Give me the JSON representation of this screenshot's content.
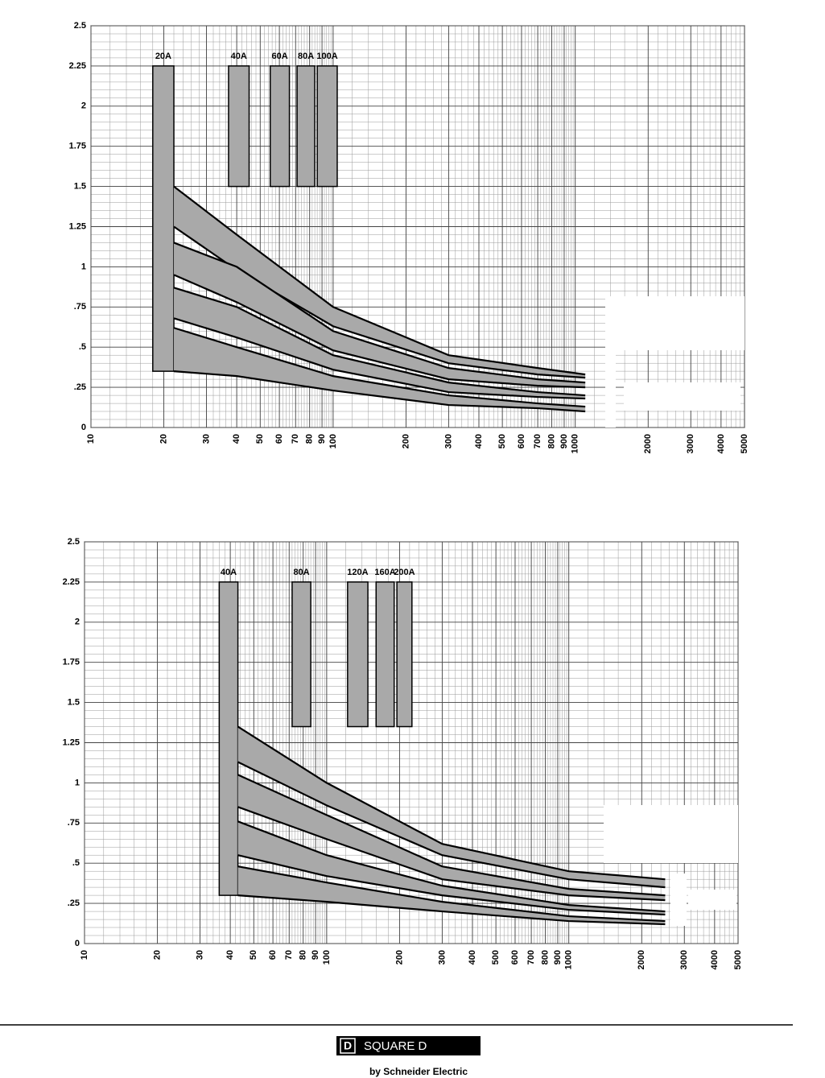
{
  "chart_data": [
    {
      "type": "band",
      "log_x": true,
      "grid": true,
      "fill_color": "#a9a9a9",
      "xlim": [
        10,
        5000
      ],
      "xticks": [
        10,
        20,
        30,
        40,
        50,
        60,
        70,
        80,
        90,
        100,
        200,
        300,
        400,
        500,
        600,
        700,
        800,
        900,
        1000,
        2000,
        3000,
        4000,
        5000
      ],
      "ylim": [
        0,
        2.5
      ],
      "yticks": [
        0,
        {
          "value": 0.25,
          "label": ".25"
        },
        {
          "value": 0.5,
          "label": ".5"
        },
        {
          "value": 0.75,
          "label": ".75"
        },
        1,
        1.25,
        1.5,
        1.75,
        2,
        2.25,
        2.5
      ],
      "x": [
        22,
        40,
        100,
        300,
        700,
        1100
      ],
      "bands": [
        {
          "upper": [
            1.5,
            1.2,
            0.75,
            0.45,
            0.37,
            0.33
          ],
          "lower": [
            1.25,
            0.98,
            0.63,
            0.4,
            0.33,
            0.31
          ]
        },
        {
          "upper": [
            1.15,
            1.0,
            0.6,
            0.37,
            0.3,
            0.28
          ],
          "lower": [
            0.95,
            0.78,
            0.48,
            0.3,
            0.26,
            0.25
          ]
        },
        {
          "upper": [
            0.87,
            0.75,
            0.45,
            0.28,
            0.22,
            0.2
          ],
          "lower": [
            0.68,
            0.56,
            0.36,
            0.22,
            0.19,
            0.18
          ]
        },
        {
          "upper": [
            0.62,
            0.5,
            0.32,
            0.2,
            0.15,
            0.13
          ],
          "lower": [
            0.35,
            0.32,
            0.23,
            0.14,
            0.12,
            0.1
          ]
        }
      ],
      "strips": [
        {
          "label": "20A",
          "x": [
            18,
            22
          ],
          "y": [
            0.35,
            2.25
          ]
        },
        {
          "label": "40A",
          "x": [
            37,
            45
          ],
          "y": [
            1.5,
            2.25
          ]
        },
        {
          "label": "60A",
          "x": [
            55,
            66
          ],
          "y": [
            1.5,
            2.25
          ]
        },
        {
          "label": "80A",
          "x": [
            71,
            84
          ],
          "y": [
            1.5,
            2.25
          ]
        },
        {
          "label": "100A",
          "x": [
            86,
            104
          ],
          "y": [
            1.5,
            2.25
          ]
        }
      ]
    },
    {
      "type": "band",
      "log_x": true,
      "grid": true,
      "fill_color": "#a9a9a9",
      "xlim": [
        10,
        5000
      ],
      "xticks": [
        10,
        20,
        30,
        40,
        50,
        60,
        70,
        80,
        90,
        100,
        200,
        300,
        400,
        500,
        600,
        700,
        800,
        900,
        1000,
        2000,
        3000,
        4000,
        5000
      ],
      "ylim": [
        0,
        2.5
      ],
      "yticks": [
        0,
        {
          "value": 0.25,
          "label": ".25"
        },
        {
          "value": 0.5,
          "label": ".5"
        },
        {
          "value": 0.75,
          "label": ".75"
        },
        1,
        1.25,
        1.5,
        1.75,
        2,
        2.25,
        2.5
      ],
      "x": [
        43,
        100,
        300,
        1000,
        2500
      ],
      "bands": [
        {
          "upper": [
            1.35,
            1.0,
            0.62,
            0.45,
            0.4
          ],
          "lower": [
            1.13,
            0.86,
            0.55,
            0.4,
            0.35
          ]
        },
        {
          "upper": [
            1.05,
            0.8,
            0.48,
            0.34,
            0.3
          ],
          "lower": [
            0.85,
            0.65,
            0.4,
            0.3,
            0.27
          ]
        },
        {
          "upper": [
            0.76,
            0.55,
            0.36,
            0.24,
            0.2
          ],
          "lower": [
            0.55,
            0.42,
            0.3,
            0.21,
            0.18
          ]
        },
        {
          "upper": [
            0.48,
            0.38,
            0.26,
            0.17,
            0.14
          ],
          "lower": [
            0.3,
            0.26,
            0.2,
            0.14,
            0.12
          ]
        }
      ],
      "strips": [
        {
          "label": "40A",
          "x": [
            36,
            43
          ],
          "y": [
            0.3,
            2.25
          ]
        },
        {
          "label": "80A",
          "x": [
            72,
            86
          ],
          "y": [
            1.35,
            2.25
          ]
        },
        {
          "label": "120A",
          "x": [
            122,
            148
          ],
          "y": [
            1.35,
            2.25
          ]
        },
        {
          "label": "160A",
          "x": [
            160,
            190
          ],
          "y": [
            1.35,
            2.25
          ]
        },
        {
          "label": "200A",
          "x": [
            195,
            225
          ],
          "y": [
            1.35,
            2.25
          ]
        }
      ]
    }
  ],
  "footer": {
    "logo_mark": "D",
    "brand": "SQUARE D",
    "byline": "by Schneider Electric"
  }
}
